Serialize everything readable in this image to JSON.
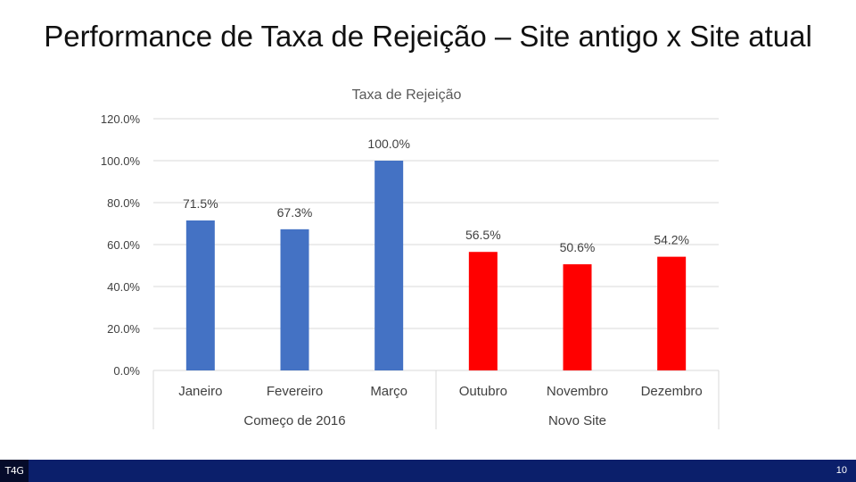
{
  "slide": {
    "title": "Performance de Taxa de Rejeição – Site antigo x Site atual",
    "page_number": "10",
    "logo_text": "T4G"
  },
  "colors": {
    "old_site": "#4472c4",
    "new_site": "#ff0000",
    "grid": "#d9d9d9",
    "text": "#404040",
    "footer": "#0b1f6b"
  },
  "chart_data": {
    "type": "bar",
    "title": "Taxa de Rejeição",
    "categories": [
      "Janeiro",
      "Fevereiro",
      "Março",
      "Outubro",
      "Novembro",
      "Dezembro"
    ],
    "values": [
      71.5,
      67.3,
      100.0,
      56.5,
      50.6,
      54.2
    ],
    "data_labels": [
      "71.5%",
      "67.3%",
      "100.0%",
      "56.5%",
      "50.6%",
      "54.2%"
    ],
    "groups": [
      {
        "name": "Começo de 2016",
        "start": 0,
        "count": 3,
        "color_key": "old_site"
      },
      {
        "name": "Novo Site",
        "start": 3,
        "count": 3,
        "color_key": "new_site"
      }
    ],
    "ylim": [
      0,
      120
    ],
    "y_ticks": [
      0,
      20,
      40,
      60,
      80,
      100,
      120
    ],
    "y_tick_labels": [
      "0.0%",
      "20.0%",
      "40.0%",
      "60.0%",
      "80.0%",
      "100.0%",
      "120.0%"
    ],
    "grid": true,
    "legend": "none"
  }
}
